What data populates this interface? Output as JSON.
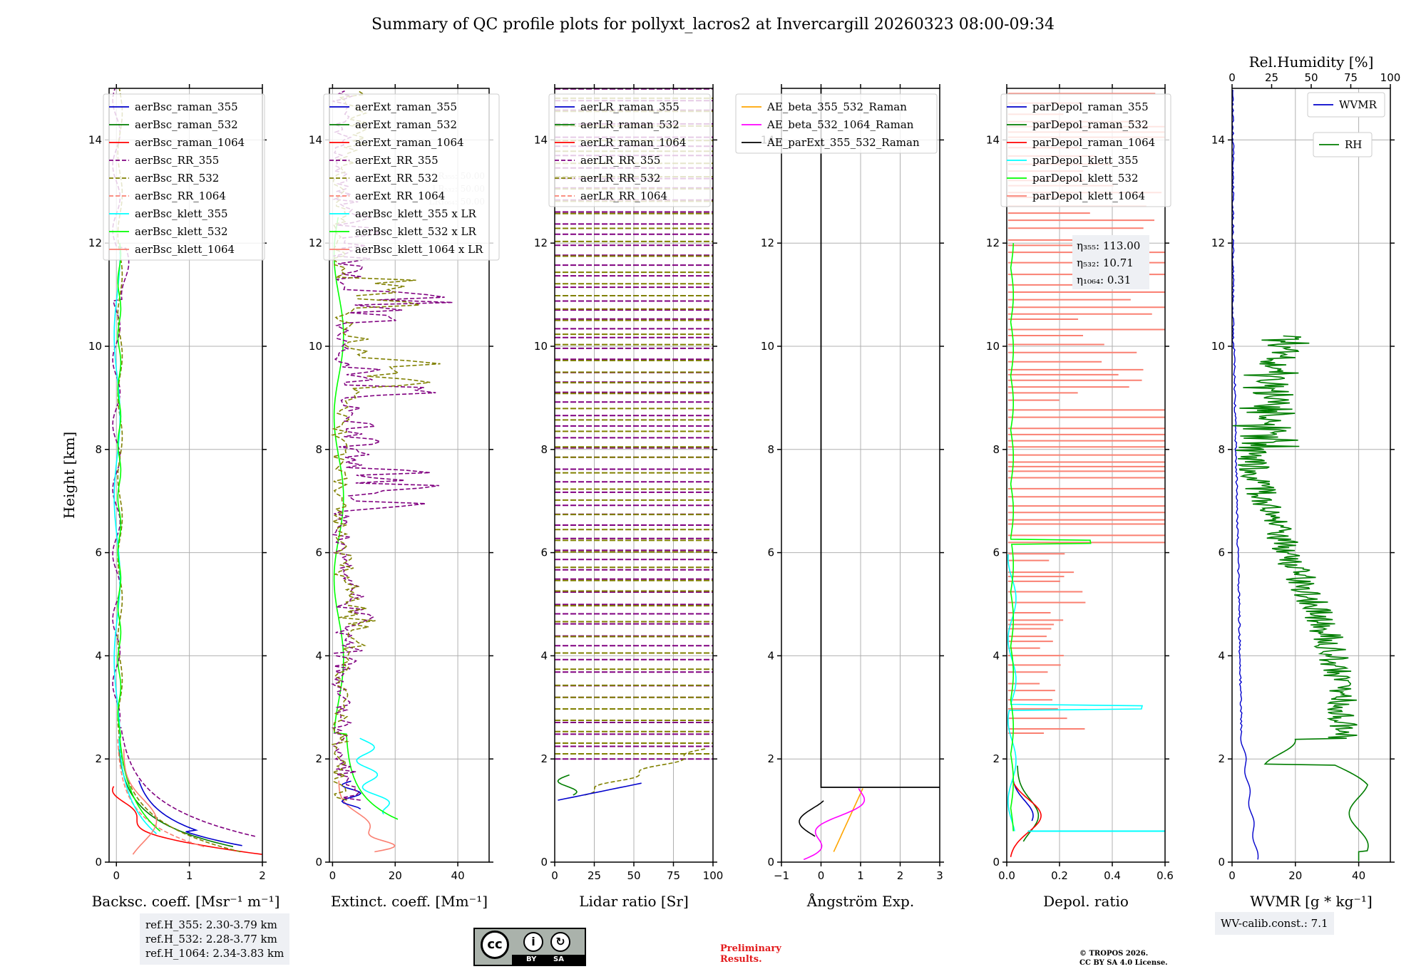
{
  "title": "Summary of QC profile plots for pollyxt_lacros2 at Invercargill 20260323 08:00-09:34",
  "ylabel": "Height [km]",
  "colors": {
    "blue": "#0000cc",
    "green": "#007d00",
    "red": "#ff0000",
    "purple": "#800080",
    "olive": "#808000",
    "salmon": "#fa8072",
    "cyan": "#00ffff",
    "lime": "#00ff00",
    "orange": "#ffa500",
    "magenta": "#ff00ff",
    "black": "#000000"
  },
  "chart_data": [
    {
      "type": "line",
      "xlabel": "Backsc. coeff. [Msr⁻¹ m⁻¹]",
      "xlim": [
        -0.1,
        2
      ],
      "ylim": [
        0,
        15
      ],
      "xticks": [
        "0",
        "1",
        "2"
      ],
      "yticks": [
        "0",
        "2",
        "4",
        "6",
        "8",
        "10",
        "12",
        "14"
      ],
      "legend": [
        "aerBsc_raman_355",
        "aerBsc_raman_532",
        "aerBsc_raman_1064",
        "aerBsc_RR_355",
        "aerBsc_RR_532",
        "aerBsc_RR_1064",
        "aerBsc_klett_355",
        "aerBsc_klett_532",
        "aerBsc_klett_1064"
      ]
    },
    {
      "type": "line",
      "xlabel": "Extinct. coeff. [Mm⁻¹]",
      "xlim": [
        -1,
        50
      ],
      "ylim": [
        0,
        15
      ],
      "xticks": [
        "0",
        "20",
        "40"
      ],
      "yticks": [
        "0",
        "2",
        "4",
        "6",
        "8",
        "10",
        "12",
        "14"
      ],
      "legend": [
        "aerExt_raman_355",
        "aerExt_raman_532",
        "aerExt_raman_1064",
        "aerExt_RR_355",
        "aerExt_RR_532",
        "aerExt_RR_1064",
        "aerBsc_klett_355 x LR",
        "aerBsc_klett_532 x LR",
        "aerBsc_klett_1064 x LR"
      ],
      "lr_labels": [
        "LR₃₅₅: 50.00",
        "LR₅₃₂: 50.00",
        "LR₁₀₆₄: 50.00"
      ]
    },
    {
      "type": "line",
      "xlabel": "Lidar ratio [Sr]",
      "xlim": [
        0,
        100
      ],
      "ylim": [
        0,
        15
      ],
      "xticks": [
        "0",
        "25",
        "50",
        "75",
        "100"
      ],
      "yticks": [
        "0",
        "2",
        "4",
        "6",
        "8",
        "10",
        "12",
        "14"
      ],
      "legend": [
        "aerLR_raman_355",
        "aerLR_raman_532",
        "aerLR_raman_1064",
        "aerLR_RR_355",
        "aerLR_RR_532",
        "aerLR_RR_1064"
      ]
    },
    {
      "type": "line",
      "xlabel": "Ångström Exp.",
      "xlim": [
        -1,
        3
      ],
      "ylim": [
        0,
        15
      ],
      "xticks": [
        "−1",
        "0",
        "1",
        "2",
        "3"
      ],
      "yticks": [
        "0",
        "2",
        "4",
        "6",
        "8",
        "10",
        "12",
        "14"
      ],
      "legend": [
        "AE_beta_355_532_Raman",
        "AE_beta_532_1064_Raman",
        "AE_parExt_355_532_Raman"
      ]
    },
    {
      "type": "line",
      "xlabel": "Depol. ratio",
      "xlim": [
        0,
        0.6
      ],
      "ylim": [
        0,
        15
      ],
      "xticks": [
        "0.0",
        "0.2",
        "0.4",
        "0.6"
      ],
      "yticks": [
        "0",
        "2",
        "4",
        "6",
        "8",
        "10",
        "12",
        "14"
      ],
      "legend": [
        "parDepol_raman_355",
        "parDepol_raman_532",
        "parDepol_raman_1064",
        "parDepol_klett_355",
        "parDepol_klett_532",
        "parDepol_klett_1064"
      ],
      "eta": [
        "η₃₅₅: 113.00",
        "η₅₃₂: 10.71",
        "η₁₀₆₄: 0.31"
      ]
    },
    {
      "type": "line",
      "xlabel": "WVMR [g * kg⁻¹]",
      "xlim": [
        0,
        50
      ],
      "ylim": [
        0,
        15
      ],
      "x2label": "Rel.Humidity [%]",
      "x2lim": [
        0,
        100
      ],
      "xticks": [
        "0",
        "20",
        "40"
      ],
      "x2ticks": [
        "0",
        "25",
        "50",
        "75",
        "100"
      ],
      "yticks": [
        "0",
        "2",
        "4",
        "6",
        "8",
        "10",
        "12",
        "14"
      ],
      "legend": [
        "WVMR",
        "RH"
      ]
    }
  ],
  "ref_heights": [
    "ref.H_355: 2.30-3.79 km",
    "ref.H_532: 2.28-3.77 km",
    "ref.H_1064: 2.34-3.83 km"
  ],
  "wv_calib": "WV-calib.const.: 7.1",
  "license_badge": {
    "cc": "cc",
    "by": "BY",
    "sa": "SA"
  },
  "preliminary": [
    "Preliminary",
    "Results."
  ],
  "copyright": [
    "© TROPOS 2026.",
    "CC BY SA 4.0 License."
  ]
}
